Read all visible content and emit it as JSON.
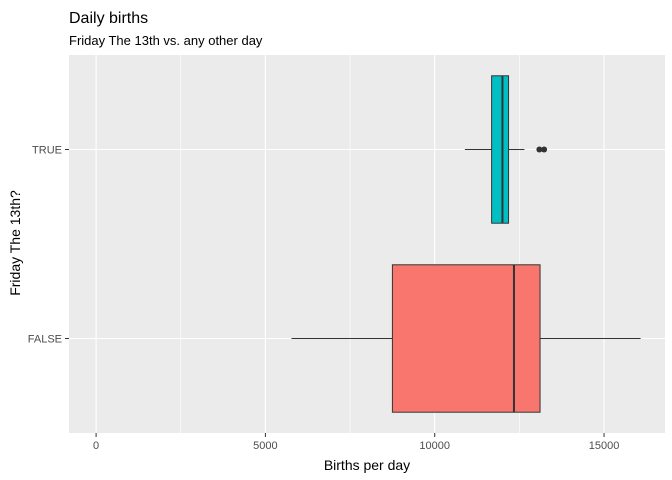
{
  "chart_data": {
    "type": "boxplot",
    "title": "Daily births",
    "subtitle": "Friday The 13th vs. any other day",
    "xlabel": "Births per day",
    "ylabel": "Friday The 13th?",
    "xlim": [
      -800,
      16800
    ],
    "xticks": [
      0,
      5000,
      10000,
      15000
    ],
    "xtick_labels": [
      "0",
      "5000",
      "10000",
      "15000"
    ],
    "grid": true,
    "categories": [
      "FALSE",
      "TRUE"
    ],
    "boxes": [
      {
        "category": "FALSE",
        "color": "#F8766D",
        "whisker_low": 5770,
        "q1": 8750,
        "median": 12340,
        "q3": 13110,
        "whisker_high": 16080,
        "outliers": []
      },
      {
        "category": "TRUE",
        "color": "#00BFC4",
        "whisker_low": 10890,
        "q1": 11680,
        "median": 12000,
        "q3": 12180,
        "whisker_high": 12650,
        "outliers": [
          13090,
          13230
        ]
      }
    ]
  }
}
